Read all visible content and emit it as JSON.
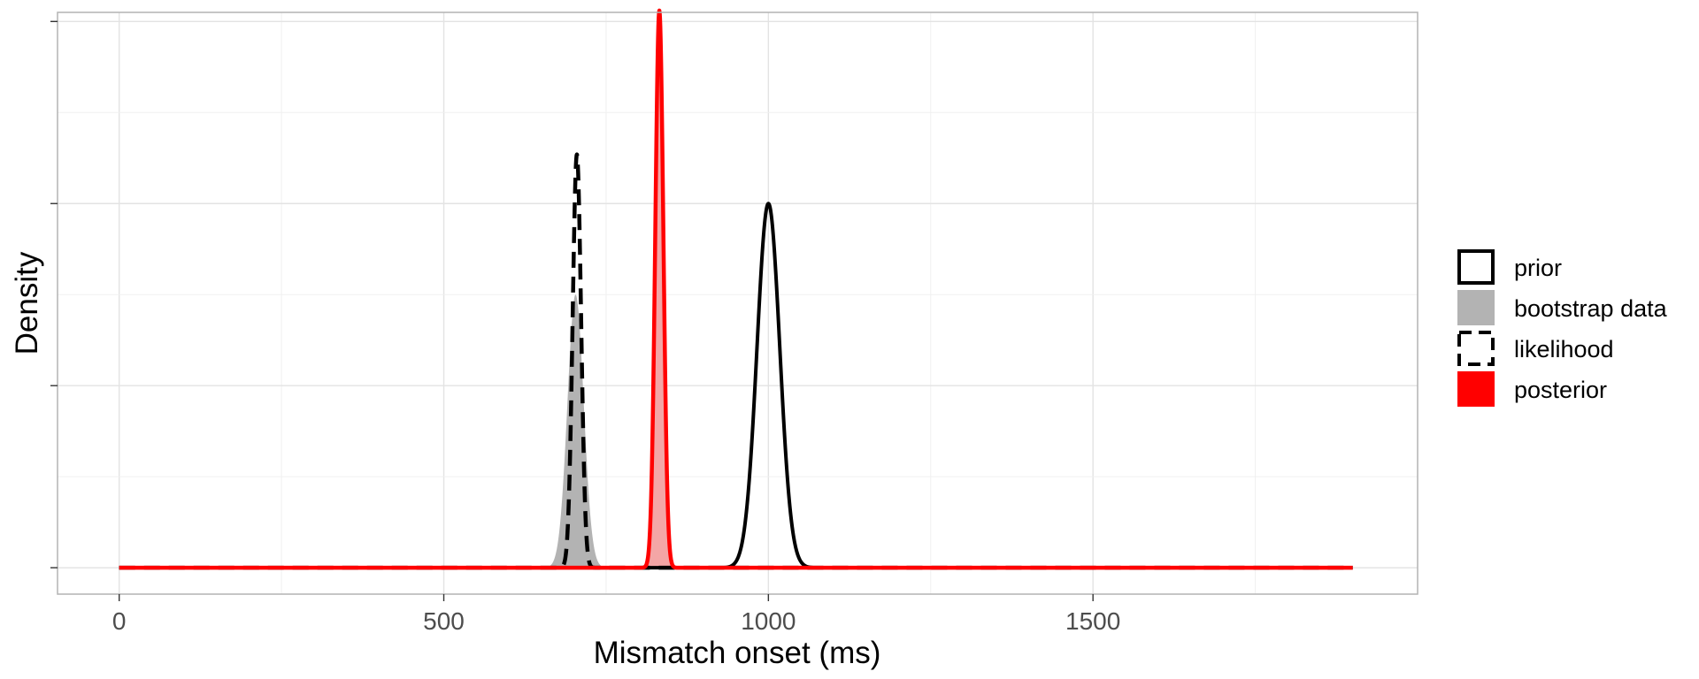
{
  "chart_data": {
    "type": "area",
    "title": "",
    "xlabel": "Mismatch onset (ms)",
    "ylabel": "Density",
    "xlim": [
      -95,
      2000
    ],
    "ylim": [
      -0.00145,
      0.0305
    ],
    "x_ticks": [
      0,
      500,
      1000,
      1500
    ],
    "x_tick_labels": [
      "0",
      "500",
      "1000",
      "1500"
    ],
    "x_range_drawn": [
      0,
      1900
    ],
    "grid": true,
    "legend_position": "right",
    "colors": {
      "prior": "#000000",
      "bootstrap": "#b3b3b3",
      "likelihood": "#000000",
      "posterior": "#ff0000",
      "posterior_fill": "#f4a6a6",
      "panel_border": "#b3b3b3",
      "grid": "#e6e6e6"
    },
    "series": [
      {
        "name": "prior",
        "kind": "line",
        "style": "solid",
        "color": "#000000",
        "distribution": "normal",
        "mean": 1000,
        "sd": 17.5,
        "peak": 0.02
      },
      {
        "name": "bootstrap data",
        "kind": "fill",
        "color": "#b3b3b3",
        "distribution": "normal",
        "mean": 703,
        "sd": 12.5,
        "peak": 0.015
      },
      {
        "name": "likelihood",
        "kind": "line",
        "style": "dashed",
        "color": "#000000",
        "distribution": "normal",
        "mean": 705,
        "sd": 6.5,
        "peak": 0.0227
      },
      {
        "name": "posterior",
        "kind": "fill+line",
        "style": "solid",
        "color": "#ff0000",
        "fill": "#f4a6a6",
        "distribution": "normal",
        "mean": 832,
        "sd": 6.2,
        "peak": 0.0306
      }
    ],
    "legend": [
      {
        "label": "prior",
        "swatch": "outline"
      },
      {
        "label": "bootstrap data",
        "swatch": "gray-fill"
      },
      {
        "label": "likelihood",
        "swatch": "dashed-outline"
      },
      {
        "label": "posterior",
        "swatch": "red-fill"
      }
    ]
  }
}
